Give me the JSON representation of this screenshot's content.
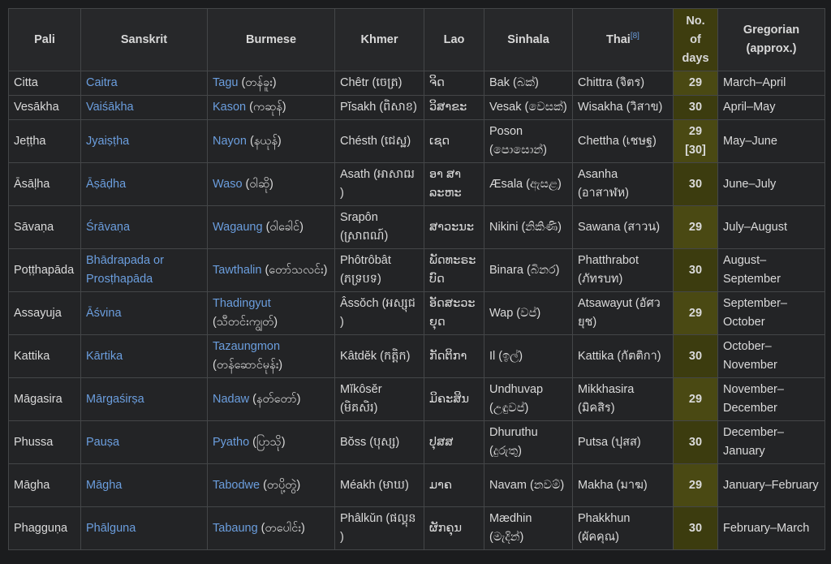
{
  "table": {
    "headers": {
      "pali": "Pali",
      "sanskrit": "Sanskrit",
      "burmese": "Burmese",
      "khmer": "Khmer",
      "lao": "Lao",
      "sinhala": "Sinhala",
      "thai": "Thai",
      "thai_ref": "[8]",
      "days_line1": "No.",
      "days_line2": "of",
      "days_line3": "days",
      "gregorian_line1": "Gregorian",
      "gregorian_line2": "(approx.)"
    },
    "colors": {
      "link": "#6b9ede",
      "days_header": "#3e3d0f",
      "days_29": "#4a4913",
      "days_30": "#3c3c0f",
      "background": "#1b1c1e",
      "table_bg": "#232426",
      "border": "#444648"
    },
    "rows": [
      {
        "pali": "Citta",
        "sanskrit": "Caitra",
        "burmese_link": "Tagu",
        "burmese_script": " (တန်ခူး)",
        "khmer": "Chêtr (ចេត្រ)",
        "lao": "ຈິດ",
        "sinhala": "Bak (බක්)",
        "thai": "Chittra (จิตร)",
        "days": "29",
        "days_alt": "",
        "gregorian": "March–April"
      },
      {
        "pali": "Vesākha",
        "sanskrit": "Vaiśākha",
        "burmese_link": "Kason",
        "burmese_script": " (ကဆုန်)",
        "khmer": "Pĭsakh (ពិសាខ)",
        "lao": "ວິສາຂະ",
        "sinhala": "Vesak (වෙසක්)",
        "thai": "Wisakha (วิสาข)",
        "days": "30",
        "days_alt": "",
        "gregorian": "April–May"
      },
      {
        "pali": "Jeṭṭha",
        "sanskrit": "Jyaiṣṭha",
        "burmese_link": "Nayon",
        "burmese_script": " (နယုန်)",
        "khmer": "Chésth (ជេស្ឋ)",
        "lao": "ເຊດ",
        "sinhala": "Poson (පොසොන්)",
        "thai": "Chettha (เชษฐ)",
        "days": "29",
        "days_alt": "[30]",
        "gregorian": "May–June"
      },
      {
        "pali": "Āsāḷha",
        "sanskrit": "Āṣāḍha",
        "burmese_link": "Waso",
        "burmese_script": " (ဝါဆို)",
        "khmer": "Asath (អាសាឍ )",
        "lao": "ອາ ສາລະຫະ",
        "sinhala": "Æsala (ඇසළ)",
        "thai": "Asanha (อาสาฬห)",
        "days": "30",
        "days_alt": "",
        "gregorian": "June–July"
      },
      {
        "pali": "Sāvaṇa",
        "sanskrit": "Śrāvaṇa",
        "burmese_link": "Wagaung",
        "burmese_script": " (ဝါခေါင်)",
        "khmer": "Srapôn (ស្រាពណ៍)",
        "lao": "ສາວະນະ",
        "sinhala": "Nikini (නිකිණි)",
        "thai": "Sawana (สาวน)",
        "days": "29",
        "days_alt": "",
        "gregorian": "July–August"
      },
      {
        "pali": "Poṭṭhapāda",
        "sanskrit": "Bhādrapada or Prosṭhapāda",
        "burmese_link": "Tawthalin",
        "burmese_script": " (တော်သလင်း)",
        "khmer": "Phôtrôbât (ភទ្របទ)",
        "lao": "ພັດທະຣະ ບົດ",
        "sinhala": "Binara (බිනර)",
        "thai": "Phatthrabot (ภัทรบท)",
        "days": "30",
        "days_alt": "",
        "gregorian": "August–September"
      },
      {
        "pali": "Assayuja",
        "sanskrit": "Āśvina",
        "burmese_link": "Thadingyut",
        "burmese_script": " (သီတင်းကျွတ်)",
        "khmer": "Âssŏch (អស្សុជ )",
        "lao": "ອັດສະວະ ຍຸດ",
        "sinhala": "Wap (වප්)",
        "thai": "Atsawayut (อัศวยุช)",
        "days": "29",
        "days_alt": "",
        "gregorian": "September–October"
      },
      {
        "pali": "Kattika",
        "sanskrit": "Kārtika",
        "burmese_link": "Tazaungmon",
        "burmese_script": " (တန်ဆောင်မုန်း)",
        "khmer": "Kâtdĕk (កត្តិក)",
        "lao": "ກັດຕິກາ",
        "sinhala": "Il (ඉල්)",
        "thai": "Kattika (กัตติกา)",
        "days": "30",
        "days_alt": "",
        "gregorian": "October–November"
      },
      {
        "pali": "Māgasira",
        "sanskrit": "Mārgaśirṣa",
        "burmese_link": "Nadaw",
        "burmese_script": " (နတ်တော်)",
        "khmer": "Mĭkôsĕr (មិគសិរ)",
        "lao": "ມິຄະສິນ",
        "sinhala": "Undhuvap (උඳුවප්)",
        "thai": "Mikkhasira (มิคสิร)",
        "days": "29",
        "days_alt": "",
        "gregorian": "November–December"
      },
      {
        "pali": "Phussa",
        "sanskrit": "Pauṣa",
        "burmese_link": "Pyatho",
        "burmese_script": " (ပြာသို)",
        "khmer": "Bŏss (បុស្ស)",
        "lao": "ປຸສສ",
        "sinhala": "Dhuruthu (දුරුතු)",
        "thai": "Putsa (ปุสส)",
        "days": "30",
        "days_alt": "",
        "gregorian": "December–January"
      },
      {
        "pali": "Māgha",
        "sanskrit": "Māgha",
        "burmese_link": "Tabodwe",
        "burmese_script": " (တပို့တွဲ)",
        "khmer": "Méakh (មាឃ)",
        "lao": "ມາຄ",
        "sinhala": "Navam (නවම්)",
        "thai": "Makha (มาฆ)",
        "days": "29",
        "days_alt": "",
        "gregorian": "January–February"
      },
      {
        "pali": "Phagguṇa",
        "sanskrit": "Phālguna",
        "burmese_link": "Tabaung",
        "burmese_script": " (တပေါင်း)",
        "khmer": "Phâlkŭn (ផល្គុន )",
        "lao": "ຜັກຄຸນ",
        "sinhala": "Mædhin (මැදින්)",
        "thai": "Phakkhun (ผัคคุณ)",
        "days": "30",
        "days_alt": "",
        "gregorian": "February–March"
      }
    ]
  }
}
